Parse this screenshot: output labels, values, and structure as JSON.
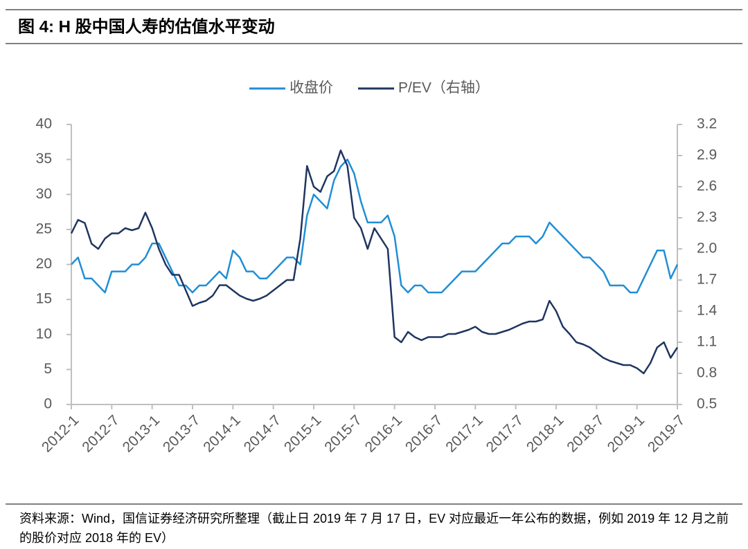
{
  "chart_data": {
    "type": "line",
    "title": "图 4:  H 股中国人寿的估值水平变动",
    "source": "资料来源：Wind，国信证券经济研究所整理（截止日 2019 年 7 月 17 日，EV 对应最近一年公布的数据，例如 2019 年 12 月之前的股价对应 2018 年的 EV）",
    "categories": [
      "2012-1",
      null,
      null,
      null,
      null,
      null,
      "2012-7",
      null,
      null,
      null,
      null,
      null,
      "2013-1",
      null,
      null,
      null,
      null,
      null,
      "2013-7",
      null,
      null,
      null,
      null,
      null,
      "2014-1",
      null,
      null,
      null,
      null,
      null,
      "2014-7",
      null,
      null,
      null,
      null,
      null,
      "2015-1",
      null,
      null,
      null,
      null,
      null,
      "2015-7",
      null,
      null,
      null,
      null,
      null,
      "2016-1",
      null,
      null,
      null,
      null,
      null,
      "2016-7",
      null,
      null,
      null,
      null,
      null,
      "2017-1",
      null,
      null,
      null,
      null,
      null,
      "2017-7",
      null,
      null,
      null,
      null,
      null,
      "2018-1",
      null,
      null,
      null,
      null,
      null,
      "2018-7",
      null,
      null,
      null,
      null,
      null,
      "2019-1",
      null,
      null,
      null,
      null,
      null,
      "2019-7"
    ],
    "series": [
      {
        "name": "收盘价",
        "color": "#1f8ed6",
        "values": [
          20,
          21,
          18,
          18,
          17,
          16,
          19,
          19,
          19,
          20,
          20,
          21,
          23,
          23,
          21,
          19,
          17,
          17,
          16,
          17,
          17,
          18,
          19,
          18,
          22,
          21,
          19,
          19,
          18,
          18,
          19,
          20,
          21,
          21,
          20,
          27,
          30,
          29,
          28,
          32,
          34,
          35,
          33,
          29,
          26,
          26,
          26,
          27,
          24,
          17,
          16,
          17,
          17,
          16,
          16,
          16,
          17,
          18,
          19,
          19,
          19,
          20,
          21,
          22,
          23,
          23,
          24,
          24,
          24,
          23,
          24,
          26,
          25,
          24,
          23,
          22,
          21,
          21,
          20,
          19,
          17,
          17,
          17,
          16,
          16,
          18,
          20,
          22,
          22,
          18,
          20
        ]
      },
      {
        "name": "P/EV（右轴）",
        "color": "#1f3560",
        "axis": "y2",
        "values": [
          2.15,
          2.28,
          2.25,
          2.05,
          2.0,
          2.1,
          2.15,
          2.15,
          2.2,
          2.18,
          2.2,
          2.35,
          2.2,
          2.0,
          1.85,
          1.75,
          1.75,
          1.6,
          1.45,
          1.48,
          1.5,
          1.55,
          1.65,
          1.65,
          1.6,
          1.55,
          1.52,
          1.5,
          1.52,
          1.55,
          1.6,
          1.65,
          1.7,
          1.7,
          2.1,
          2.8,
          2.6,
          2.55,
          2.7,
          2.75,
          2.95,
          2.8,
          2.3,
          2.2,
          2.0,
          2.2,
          2.1,
          2.0,
          1.15,
          1.1,
          1.2,
          1.15,
          1.12,
          1.15,
          1.15,
          1.15,
          1.18,
          1.18,
          1.2,
          1.22,
          1.25,
          1.2,
          1.18,
          1.18,
          1.2,
          1.22,
          1.25,
          1.28,
          1.3,
          1.3,
          1.32,
          1.5,
          1.4,
          1.25,
          1.18,
          1.1,
          1.08,
          1.05,
          1.0,
          0.95,
          0.92,
          0.9,
          0.88,
          0.88,
          0.85,
          0.8,
          0.9,
          1.05,
          1.1,
          0.95,
          1.05
        ]
      }
    ],
    "ylim": [
      0,
      40
    ],
    "yticks": [
      0,
      5,
      10,
      15,
      20,
      25,
      30,
      35,
      40
    ],
    "y2lim": [
      0.5,
      3.2
    ],
    "y2ticks": [
      0.5,
      0.8,
      1.1,
      1.4,
      1.7,
      {
        "value": 2,
        "label": "2.0"
      },
      2.3,
      2.6,
      2.9,
      3.2
    ],
    "legend": "top"
  }
}
